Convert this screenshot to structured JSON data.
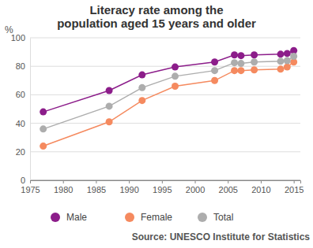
{
  "chart_data": {
    "type": "line",
    "title": "Literacy rate among the\npopulation aged 15 years and older",
    "y_label": "%",
    "source": "Source: UNESCO Institute for Statistics",
    "x": [
      1977,
      1987,
      1992,
      1997,
      2003,
      2006,
      2007,
      2009,
      2013,
      2014,
      2015
    ],
    "series": [
      {
        "name": "Male",
        "color": "#8c1d8a",
        "values": [
          48,
          63,
          74,
          79.5,
          83,
          88,
          87.5,
          88,
          88.5,
          89,
          91
        ]
      },
      {
        "name": "Female",
        "color": "#f58a5f",
        "values": [
          24,
          41,
          56,
          66,
          70,
          77,
          77,
          77.5,
          78,
          79.5,
          83
        ]
      },
      {
        "name": "Total",
        "color": "#adadad",
        "values": [
          36,
          52,
          65,
          73,
          77,
          82.5,
          82,
          83,
          83.5,
          84,
          87
        ]
      }
    ],
    "xlim": [
      1975,
      2016
    ],
    "xticks": [
      1975,
      1980,
      1985,
      1990,
      1995,
      2000,
      2005,
      2010,
      2015
    ],
    "ylim": [
      0,
      100
    ],
    "yticks": [
      0,
      20,
      40,
      60,
      80,
      100
    ],
    "grid": true,
    "legend": "bottom",
    "marker": "circle"
  }
}
